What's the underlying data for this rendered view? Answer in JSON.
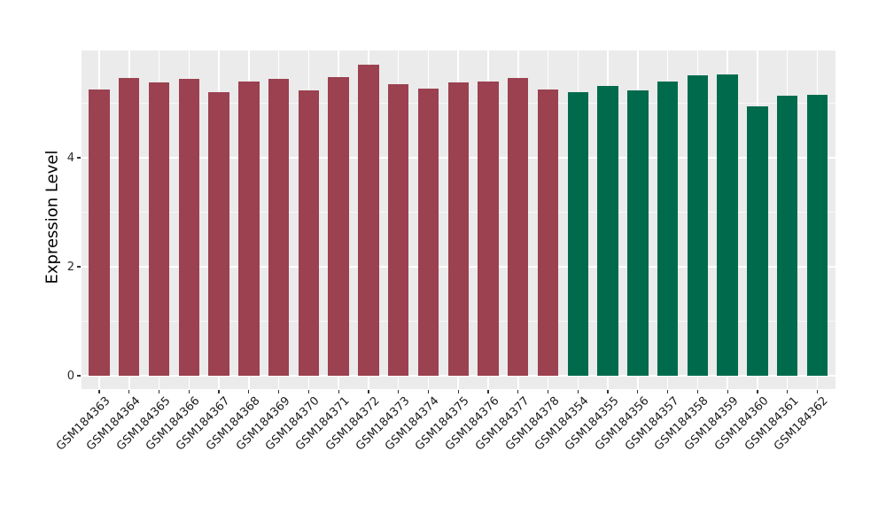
{
  "colors": {
    "panel_background": "#EBEBEB",
    "gridline": "#FFFFFF",
    "group_a": "#9B4150",
    "group_b": "#006B4C",
    "axis_text": "#1a1a1a"
  },
  "chart_data": {
    "type": "bar",
    "title": "",
    "xlabel": "",
    "ylabel": "Expression Level",
    "ylim": [
      0,
      5.97
    ],
    "yticks": [
      "0",
      "2",
      "4"
    ],
    "ytick_values": [
      0,
      2,
      4
    ],
    "minor_gridline_values": [
      1,
      3,
      5
    ],
    "grid": "on",
    "legend": "none",
    "categories": [
      "GSM184363",
      "GSM184364",
      "GSM184365",
      "GSM184366",
      "GSM184367",
      "GSM184368",
      "GSM184369",
      "GSM184370",
      "GSM184371",
      "GSM184372",
      "GSM184373",
      "GSM184374",
      "GSM184375",
      "GSM184376",
      "GSM184377",
      "GSM184378",
      "GSM184354",
      "GSM184355",
      "GSM184356",
      "GSM184357",
      "GSM184358",
      "GSM184359",
      "GSM184360",
      "GSM184361",
      "GSM184362"
    ],
    "series": [
      {
        "name": "group-a-maroon",
        "color": "#9B4150",
        "points": [
          [
            "GSM184363",
            5.26
          ],
          [
            "GSM184364",
            5.46
          ],
          [
            "GSM184365",
            5.38
          ],
          [
            "GSM184366",
            5.44
          ],
          [
            "GSM184367",
            5.21
          ],
          [
            "GSM184368",
            5.4
          ],
          [
            "GSM184369",
            5.45
          ],
          [
            "GSM184370",
            5.24
          ],
          [
            "GSM184371",
            5.48
          ],
          [
            "GSM184372",
            5.7
          ],
          [
            "GSM184373",
            5.35
          ],
          [
            "GSM184374",
            5.27
          ],
          [
            "GSM184375",
            5.39
          ],
          [
            "GSM184376",
            5.4
          ],
          [
            "GSM184377",
            5.46
          ],
          [
            "GSM184378",
            5.26
          ]
        ]
      },
      {
        "name": "group-b-green",
        "color": "#006B4C",
        "points": [
          [
            "GSM184354",
            5.2
          ],
          [
            "GSM184355",
            5.32
          ],
          [
            "GSM184356",
            5.23
          ],
          [
            "GSM184357",
            5.4
          ],
          [
            "GSM184358",
            5.51
          ],
          [
            "GSM184359",
            5.53
          ],
          [
            "GSM184360",
            4.95
          ],
          [
            "GSM184361",
            5.14
          ],
          [
            "GSM184362",
            5.16
          ]
        ]
      }
    ]
  }
}
